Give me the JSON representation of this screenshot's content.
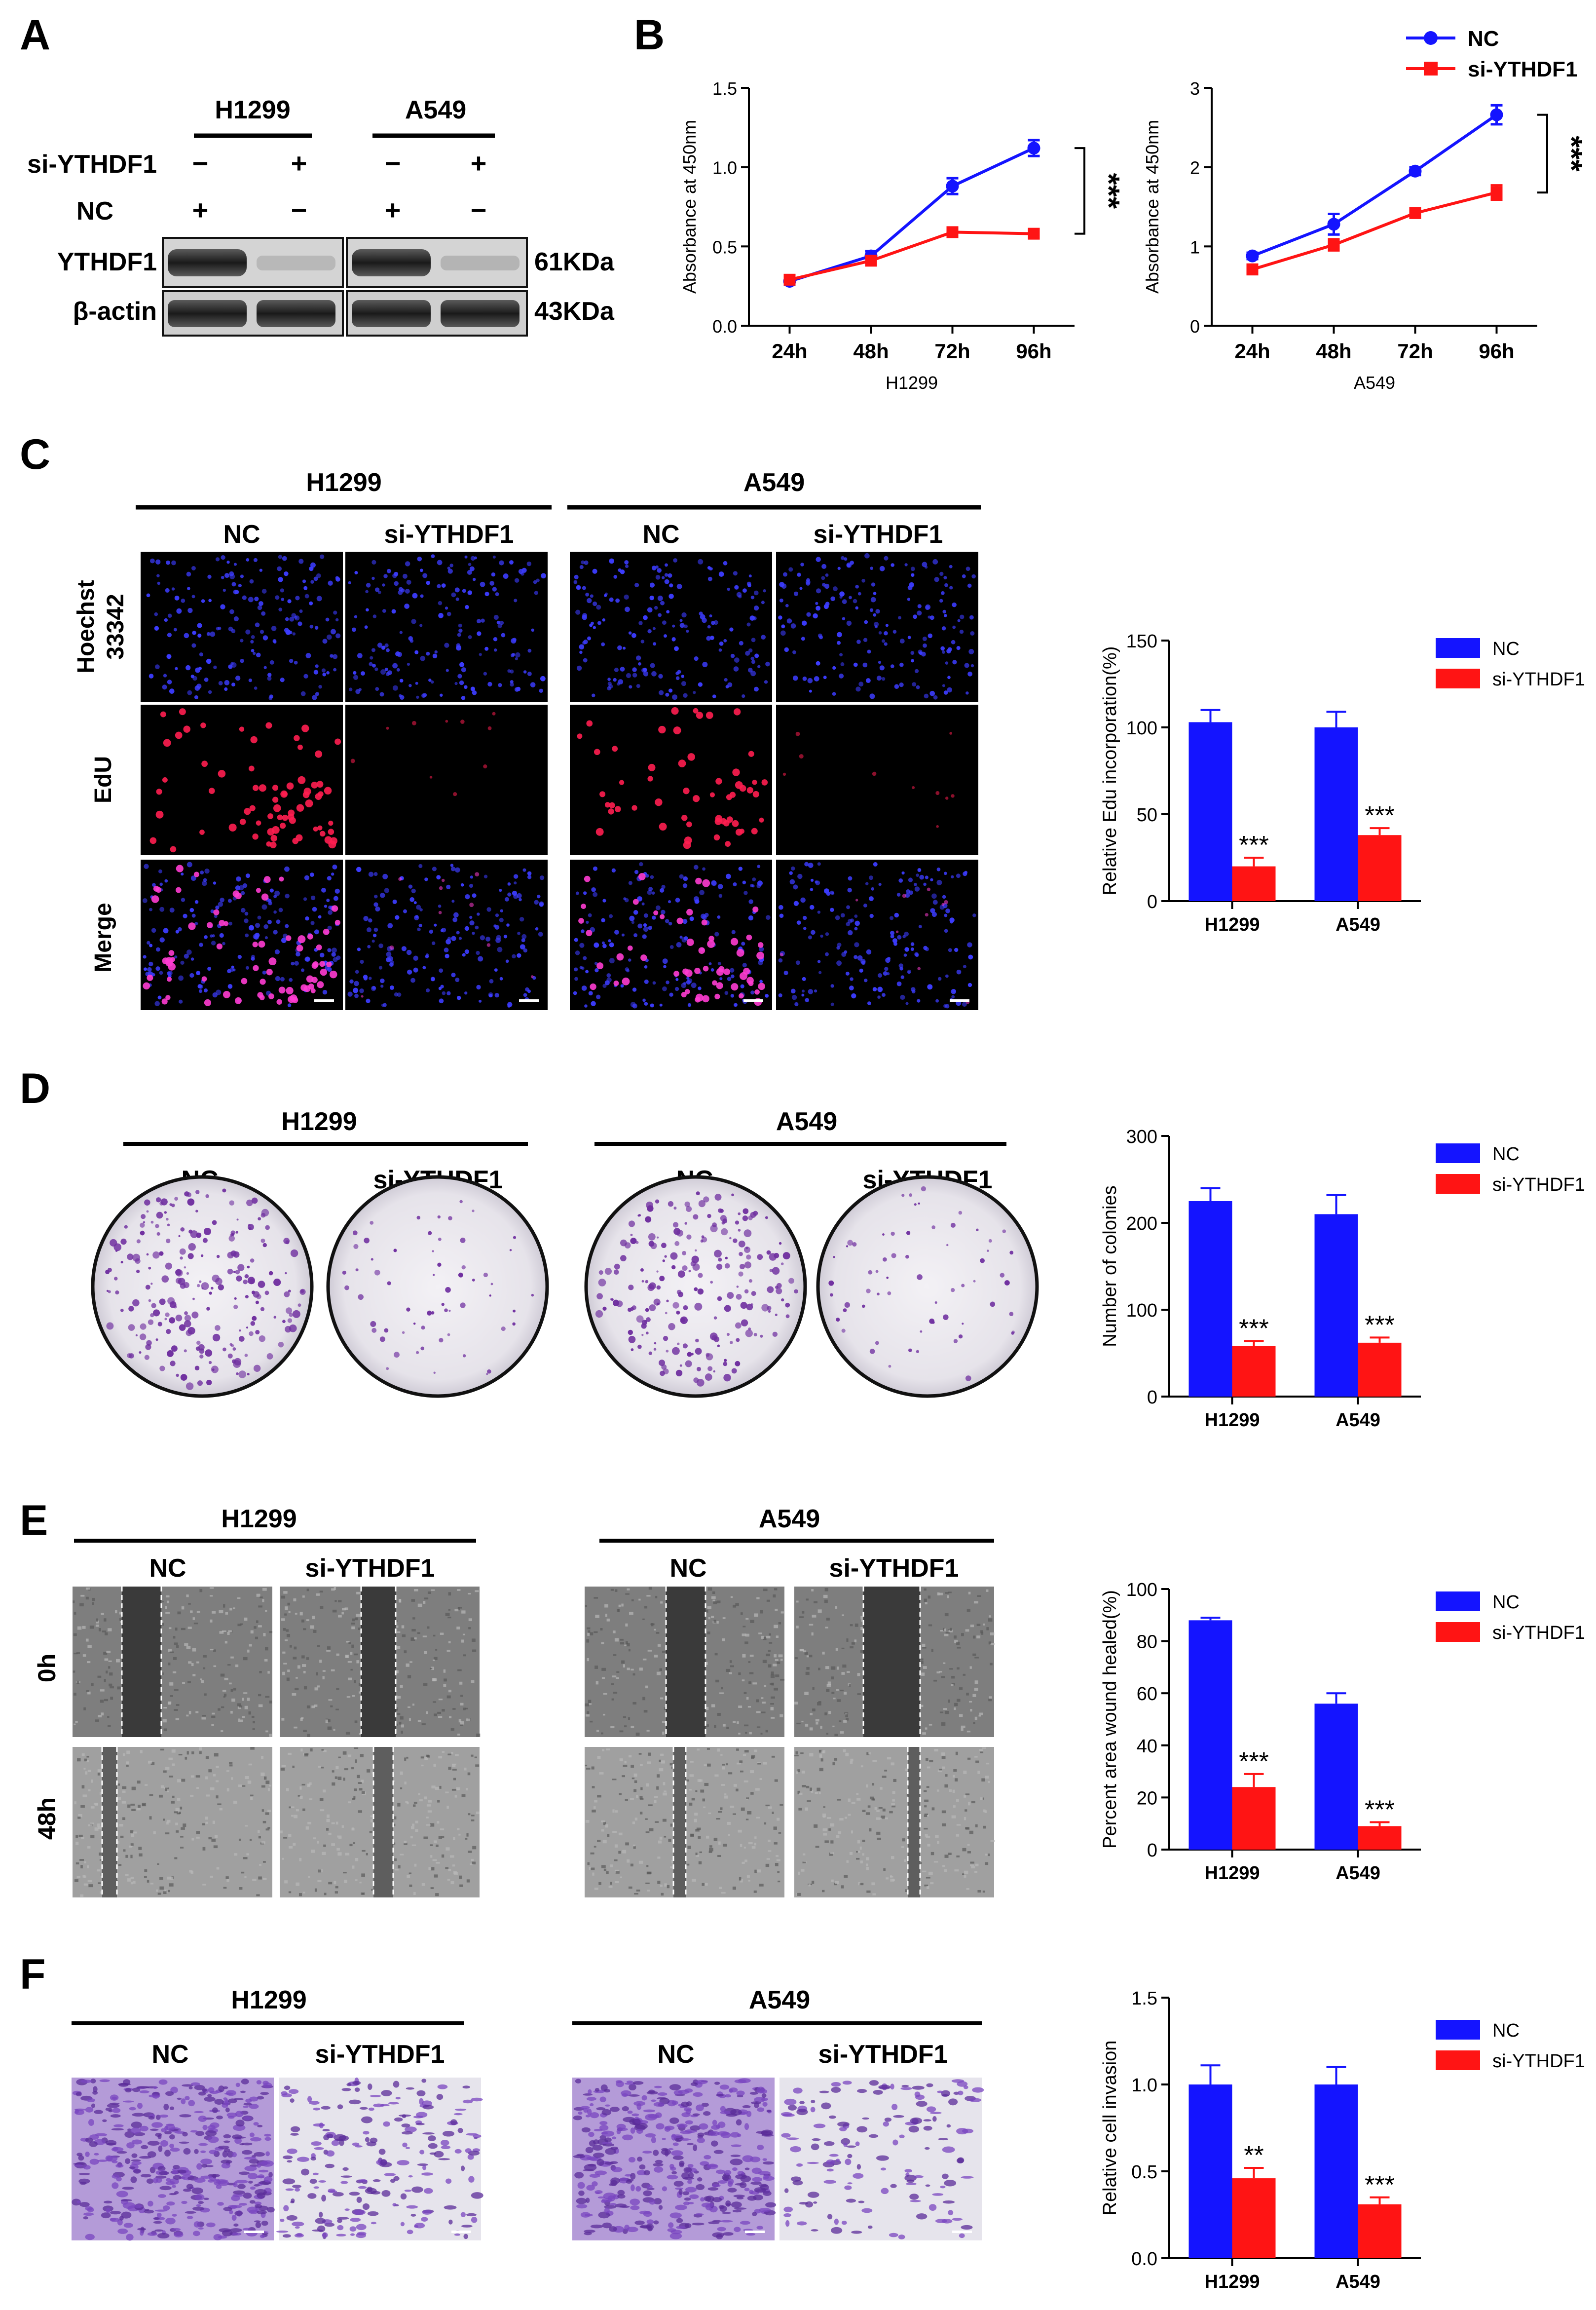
{
  "colors": {
    "nc": "#1414ff",
    "si": "#ff1414",
    "text": "#000000",
    "hoechst": "#3c3cff",
    "edu": "#ff1e50",
    "crystal": "#7030a0"
  },
  "icons": {
    "legend_nc_line": "circle-marker-line",
    "legend_si_line": "square-marker-line",
    "legend_bar": "filled-square"
  },
  "panels": {
    "A": {
      "letter": "A",
      "cell_lines": [
        "H1299",
        "A549"
      ],
      "row_labels": [
        "si-YTHDF1",
        "NC"
      ],
      "si_signs": [
        "−",
        "+",
        "−",
        "+"
      ],
      "nc_signs": [
        "+",
        "−",
        "+",
        "−"
      ],
      "blot_labels": [
        "YTHDF1",
        "β-actin"
      ],
      "sizes": [
        "61KDa",
        "43KDa"
      ]
    },
    "B": {
      "letter": "B"
    },
    "C": {
      "letter": "C",
      "cell_lines": [
        "H1299",
        "A549"
      ],
      "conditions": [
        "NC",
        "si-YTHDF1",
        "NC",
        "si-YTHDF1"
      ],
      "row_labels": [
        "Hoechst",
        "33342",
        "EdU",
        "Merge"
      ]
    },
    "D": {
      "letter": "D",
      "cell_lines": [
        "H1299",
        "A549"
      ],
      "conditions": [
        "NC",
        "si-YTHDF1",
        "NC",
        "si-YTHDF1"
      ]
    },
    "E": {
      "letter": "E",
      "cell_lines": [
        "H1299",
        "A549"
      ],
      "conditions": [
        "NC",
        "si-YTHDF1",
        "NC",
        "si-YTHDF1"
      ],
      "row_labels": [
        "0h",
        "48h"
      ]
    },
    "F": {
      "letter": "F",
      "cell_lines": [
        "H1299",
        "A549"
      ],
      "conditions": [
        "NC",
        "si-YTHDF1",
        "NC",
        "si-YTHDF1"
      ]
    }
  },
  "chart_data": [
    {
      "id": "B-H1299",
      "type": "line",
      "x": [
        "24h",
        "48h",
        "72h",
        "96h"
      ],
      "xlabel": "H1299",
      "ylabel": "Absorbance at 450nm",
      "ylim": [
        0,
        1.5
      ],
      "yticks": [
        "0.0",
        "0.5",
        "1.0",
        "1.5"
      ],
      "series": [
        {
          "name": "NC",
          "values": [
            0.28,
            0.44,
            0.88,
            1.12
          ],
          "err": [
            0.02,
            0.03,
            0.05,
            0.05
          ]
        },
        {
          "name": "si-YTHDF1",
          "values": [
            0.29,
            0.41,
            0.59,
            0.58
          ],
          "err": [
            0.02,
            0.02,
            0.02,
            0.02
          ]
        }
      ],
      "annotation": "***",
      "legend": "none",
      "grid": false
    },
    {
      "id": "B-A549",
      "type": "line",
      "x": [
        "24h",
        "48h",
        "72h",
        "96h"
      ],
      "xlabel": "A549",
      "ylabel": "Absorbance at 450nm",
      "ylim": [
        0,
        3
      ],
      "yticks": [
        "0",
        "1",
        "2",
        "3"
      ],
      "series": [
        {
          "name": "NC",
          "values": [
            0.88,
            1.28,
            1.95,
            2.66
          ],
          "err": [
            0.04,
            0.13,
            0.05,
            0.12
          ]
        },
        {
          "name": "si-YTHDF1",
          "values": [
            0.71,
            1.02,
            1.42,
            1.68
          ],
          "err": [
            0.06,
            0.07,
            0.03,
            0.09
          ]
        }
      ],
      "annotation": "***",
      "legend": "top-right",
      "grid": false
    },
    {
      "id": "C-bar",
      "type": "bar",
      "categories": [
        "H1299",
        "A549"
      ],
      "ylabel": "Relative Edu incorporation(%)",
      "ylim": [
        0,
        150
      ],
      "yticks": [
        "0",
        "50",
        "100",
        "150"
      ],
      "series": [
        {
          "name": "NC",
          "values": [
            103,
            100
          ],
          "err": [
            7,
            9
          ]
        },
        {
          "name": "si-YTHDF1",
          "values": [
            20,
            38
          ],
          "err": [
            5,
            4
          ]
        }
      ],
      "significance": [
        "***",
        "***"
      ],
      "legend": "top-right",
      "grid": false
    },
    {
      "id": "D-bar",
      "type": "bar",
      "categories": [
        "H1299",
        "A549"
      ],
      "ylabel": "Number of colonies",
      "ylim": [
        0,
        300
      ],
      "yticks": [
        "0",
        "100",
        "200",
        "300"
      ],
      "series": [
        {
          "name": "NC",
          "values": [
            225,
            210
          ],
          "err": [
            15,
            22
          ]
        },
        {
          "name": "si-YTHDF1",
          "values": [
            58,
            62
          ],
          "err": [
            6,
            6
          ]
        }
      ],
      "significance": [
        "***",
        "***"
      ],
      "legend": "top-right",
      "grid": false
    },
    {
      "id": "E-bar",
      "type": "bar",
      "categories": [
        "H1299",
        "A549"
      ],
      "ylabel": "Percent area wound healed(%)",
      "ylim": [
        0,
        100
      ],
      "yticks": [
        "0",
        "20",
        "40",
        "60",
        "80",
        "100"
      ],
      "series": [
        {
          "name": "NC",
          "values": [
            88,
            56
          ],
          "err": [
            1,
            4
          ]
        },
        {
          "name": "si-YTHDF1",
          "values": [
            24,
            9
          ],
          "err": [
            5,
            1.5
          ]
        }
      ],
      "significance": [
        "***",
        "***"
      ],
      "legend": "top-right",
      "grid": false
    },
    {
      "id": "F-bar",
      "type": "bar",
      "categories": [
        "H1299",
        "A549"
      ],
      "ylabel": "Relative cell invasion",
      "ylim": [
        0,
        1.5
      ],
      "yticks": [
        "0.0",
        "0.5",
        "1.0",
        "1.5"
      ],
      "series": [
        {
          "name": "NC",
          "values": [
            1.0,
            1.0
          ],
          "err": [
            0.11,
            0.1
          ]
        },
        {
          "name": "si-YTHDF1",
          "values": [
            0.46,
            0.31
          ],
          "err": [
            0.06,
            0.04
          ]
        }
      ],
      "significance": [
        "**",
        "***"
      ],
      "legend": "top-right",
      "grid": false
    }
  ]
}
